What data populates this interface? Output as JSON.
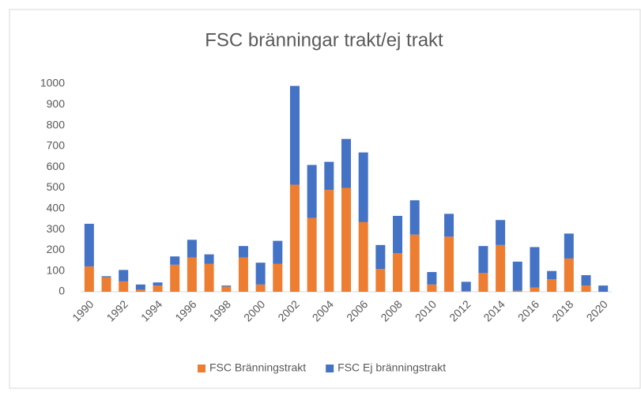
{
  "chart_data": {
    "type": "stacked_bar",
    "title": "FSC bränningar trakt/ej trakt",
    "categories": [
      "1990",
      null,
      "1992",
      null,
      "1994",
      null,
      "1996",
      null,
      "1998",
      null,
      "2000",
      null,
      "2002",
      null,
      "2004",
      null,
      "2006",
      null,
      "2008",
      null,
      "2010",
      null,
      "2012",
      null,
      "2014",
      null,
      "2016",
      null,
      "2018",
      null,
      "2020"
    ],
    "series": [
      {
        "name": "FSC Bränningstrakt",
        "color": "#ed7d31",
        "values": [
          122,
          70,
          50,
          10,
          30,
          130,
          165,
          135,
          25,
          165,
          35,
          135,
          515,
          355,
          490,
          500,
          335,
          110,
          185,
          275,
          35,
          265,
          3,
          90,
          225,
          5,
          20,
          60,
          160,
          30,
          0
        ]
      },
      {
        "name": "FSC Ej bränningstrakt",
        "color": "#4472c4",
        "values": [
          205,
          5,
          55,
          25,
          15,
          40,
          85,
          45,
          5,
          55,
          105,
          110,
          475,
          255,
          135,
          235,
          335,
          115,
          180,
          165,
          60,
          110,
          45,
          130,
          120,
          140,
          195,
          40,
          120,
          50,
          30
        ]
      }
    ],
    "ylim": [
      0,
      1000
    ],
    "yticks": [
      0,
      100,
      200,
      300,
      400,
      500,
      600,
      700,
      800,
      900,
      1000
    ],
    "grid": false,
    "legend": "bottom"
  }
}
